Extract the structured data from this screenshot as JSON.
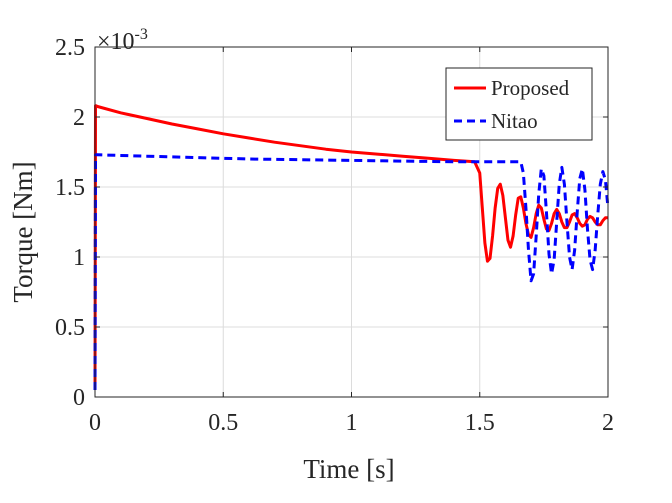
{
  "chart_data": {
    "type": "line",
    "xlabel": "Time [s]",
    "ylabel": "Torque [Nm]",
    "xlim": [
      0,
      2
    ],
    "ylim": [
      0,
      2.5
    ],
    "y_exponent_label": "×10",
    "y_exponent_power": "-3",
    "x_ticks": [
      "0",
      "0.5",
      "1",
      "1.5",
      "2"
    ],
    "y_ticks": [
      "0",
      "0.5",
      "1",
      "1.5",
      "2",
      "2.5"
    ],
    "grid": true,
    "legend_position": "top-right",
    "series": [
      {
        "name": "Proposed",
        "color": "#ff0000",
        "style": "solid",
        "x": [
          0,
          0.002,
          0.004,
          0.01,
          0.1,
          0.2,
          0.3,
          0.4,
          0.5,
          0.6,
          0.7,
          0.8,
          0.9,
          1.0,
          1.1,
          1.2,
          1.3,
          1.4,
          1.48,
          1.5,
          1.51,
          1.52,
          1.53,
          1.54,
          1.55,
          1.56,
          1.57,
          1.58,
          1.59,
          1.6,
          1.61,
          1.62,
          1.63,
          1.64,
          1.65,
          1.66,
          1.67,
          1.68,
          1.69,
          1.7,
          1.71,
          1.72,
          1.73,
          1.74,
          1.75,
          1.76,
          1.77,
          1.78,
          1.79,
          1.8,
          1.81,
          1.82,
          1.83,
          1.84,
          1.85,
          1.86,
          1.87,
          1.88,
          1.89,
          1.9,
          1.91,
          1.92,
          1.93,
          1.94,
          1.95,
          1.96,
          1.97,
          1.98,
          1.99,
          2.0
        ],
        "y": [
          0.05,
          2.08,
          2.08,
          2.075,
          2.03,
          1.99,
          1.95,
          1.915,
          1.88,
          1.85,
          1.82,
          1.795,
          1.77,
          1.75,
          1.735,
          1.72,
          1.705,
          1.69,
          1.68,
          1.6,
          1.35,
          1.1,
          0.97,
          0.99,
          1.15,
          1.35,
          1.49,
          1.52,
          1.44,
          1.28,
          1.12,
          1.07,
          1.15,
          1.3,
          1.42,
          1.43,
          1.35,
          1.24,
          1.16,
          1.14,
          1.21,
          1.31,
          1.37,
          1.35,
          1.27,
          1.2,
          1.19,
          1.24,
          1.31,
          1.34,
          1.31,
          1.25,
          1.21,
          1.21,
          1.25,
          1.3,
          1.31,
          1.28,
          1.24,
          1.22,
          1.23,
          1.27,
          1.29,
          1.28,
          1.25,
          1.23,
          1.23,
          1.26,
          1.28,
          1.28
        ]
      },
      {
        "name": "Nitao",
        "color": "#0000ff",
        "style": "dashed",
        "x": [
          0,
          0.002,
          0.004,
          0.01,
          0.2,
          0.4,
          0.6,
          0.8,
          1.0,
          1.2,
          1.4,
          1.6,
          1.66,
          1.67,
          1.68,
          1.69,
          1.7,
          1.71,
          1.72,
          1.73,
          1.74,
          1.75,
          1.76,
          1.77,
          1.78,
          1.79,
          1.8,
          1.81,
          1.82,
          1.83,
          1.84,
          1.85,
          1.86,
          1.87,
          1.88,
          1.89,
          1.9,
          1.91,
          1.92,
          1.93,
          1.94,
          1.95,
          1.96,
          1.97,
          1.98,
          1.99,
          2.0
        ],
        "y": [
          0.05,
          1.73,
          1.73,
          1.73,
          1.72,
          1.71,
          1.7,
          1.695,
          1.69,
          1.685,
          1.68,
          1.68,
          1.68,
          1.6,
          1.35,
          1.05,
          0.83,
          0.88,
          1.15,
          1.45,
          1.63,
          1.58,
          1.32,
          1.02,
          0.88,
          0.98,
          1.25,
          1.52,
          1.64,
          1.52,
          1.25,
          1.0,
          0.91,
          1.05,
          1.32,
          1.56,
          1.63,
          1.48,
          1.2,
          0.98,
          0.91,
          1.05,
          1.3,
          1.52,
          1.61,
          1.55,
          1.35
        ]
      }
    ]
  }
}
